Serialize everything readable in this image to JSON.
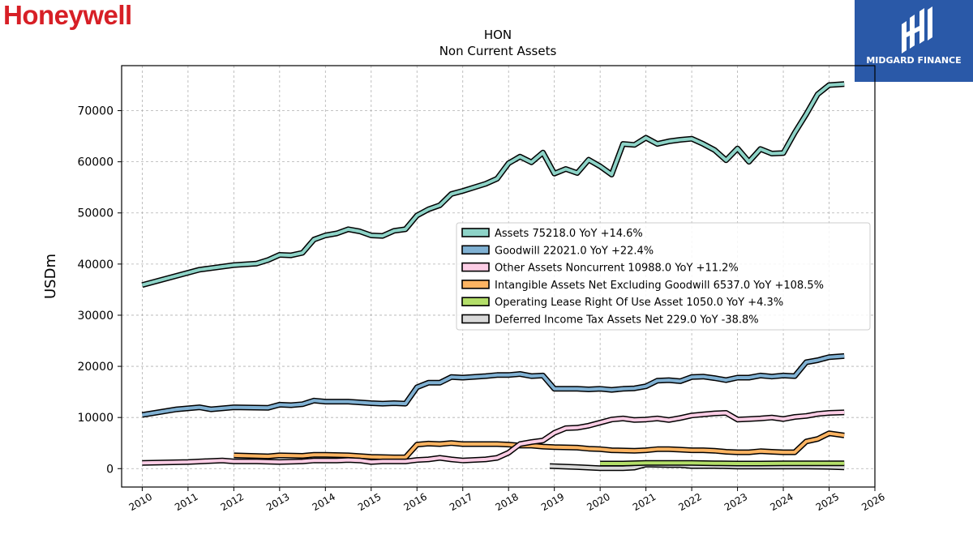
{
  "header": {
    "brand": "Honeywell",
    "badge_label": "MIDGARD FINANCE"
  },
  "chart_data": {
    "type": "line",
    "title": "HON",
    "subtitle": "Non Current  Assets",
    "xlabel": "",
    "ylabel": "USDm",
    "xlim": [
      2009.55,
      2026.0
    ],
    "ylim": [
      -3600,
      78800
    ],
    "x_ticks": [
      2010,
      2011,
      2012,
      2013,
      2014,
      2015,
      2016,
      2017,
      2018,
      2019,
      2020,
      2021,
      2022,
      2023,
      2024,
      2025,
      2026
    ],
    "y_ticks": [
      0,
      10000,
      20000,
      30000,
      40000,
      50000,
      60000,
      70000
    ],
    "grid": true,
    "legend_position": "center-right",
    "series": [
      {
        "name": "Assets",
        "legend": "Assets  75218.0 YoY +14.6%",
        "color": "#8dd3c7",
        "points": [
          [
            2010.0,
            35900
          ],
          [
            2011.25,
            38900
          ],
          [
            2012.0,
            39800
          ],
          [
            2012.5,
            40100
          ],
          [
            2012.75,
            40800
          ],
          [
            2013.0,
            41800
          ],
          [
            2013.25,
            41700
          ],
          [
            2013.5,
            42200
          ],
          [
            2013.75,
            44800
          ],
          [
            2014.0,
            45600
          ],
          [
            2014.25,
            46000
          ],
          [
            2014.5,
            46800
          ],
          [
            2014.75,
            46400
          ],
          [
            2015.0,
            45600
          ],
          [
            2015.25,
            45500
          ],
          [
            2015.5,
            46500
          ],
          [
            2015.75,
            46800
          ],
          [
            2016.0,
            49500
          ],
          [
            2016.25,
            50700
          ],
          [
            2016.5,
            51500
          ],
          [
            2016.75,
            53700
          ],
          [
            2017.0,
            54300
          ],
          [
            2017.25,
            55000
          ],
          [
            2017.5,
            55700
          ],
          [
            2017.75,
            56700
          ],
          [
            2018.0,
            59700
          ],
          [
            2018.25,
            61000
          ],
          [
            2018.5,
            59900
          ],
          [
            2018.75,
            61800
          ],
          [
            2019.0,
            57700
          ],
          [
            2019.25,
            58600
          ],
          [
            2019.5,
            57800
          ],
          [
            2019.75,
            60400
          ],
          [
            2020.0,
            59100
          ],
          [
            2020.25,
            57500
          ],
          [
            2020.5,
            63500
          ],
          [
            2020.75,
            63300
          ],
          [
            2021.0,
            64700
          ],
          [
            2021.25,
            63500
          ],
          [
            2021.5,
            64000
          ],
          [
            2021.75,
            64300
          ],
          [
            2022.0,
            64500
          ],
          [
            2022.25,
            63500
          ],
          [
            2022.5,
            62300
          ],
          [
            2022.75,
            60300
          ],
          [
            2023.0,
            62600
          ],
          [
            2023.25,
            60000
          ],
          [
            2023.5,
            62500
          ],
          [
            2023.75,
            61600
          ],
          [
            2024.0,
            61700
          ],
          [
            2024.25,
            65700
          ],
          [
            2024.5,
            69300
          ],
          [
            2024.75,
            73200
          ],
          [
            2025.0,
            75000
          ],
          [
            2025.33,
            75200
          ]
        ]
      },
      {
        "name": "Goodwill",
        "legend": "Goodwill  22021.0 YoY +22.4%",
        "color": "#80b1d3",
        "points": [
          [
            2010.0,
            10500
          ],
          [
            2010.75,
            11600
          ],
          [
            2011.25,
            12000
          ],
          [
            2011.5,
            11600
          ],
          [
            2012.0,
            12000
          ],
          [
            2012.75,
            11900
          ],
          [
            2013.0,
            12500
          ],
          [
            2013.25,
            12400
          ],
          [
            2013.5,
            12600
          ],
          [
            2013.75,
            13300
          ],
          [
            2014.0,
            13100
          ],
          [
            2014.5,
            13100
          ],
          [
            2015.0,
            12800
          ],
          [
            2015.25,
            12700
          ],
          [
            2015.5,
            12800
          ],
          [
            2015.75,
            12700
          ],
          [
            2016.0,
            15900
          ],
          [
            2016.25,
            16800
          ],
          [
            2016.5,
            16800
          ],
          [
            2016.75,
            17900
          ],
          [
            2017.0,
            17800
          ],
          [
            2017.5,
            18100
          ],
          [
            2017.75,
            18300
          ],
          [
            2018.0,
            18300
          ],
          [
            2018.25,
            18500
          ],
          [
            2018.5,
            18100
          ],
          [
            2018.75,
            18200
          ],
          [
            2019.0,
            15600
          ],
          [
            2019.5,
            15600
          ],
          [
            2019.75,
            15500
          ],
          [
            2020.0,
            15600
          ],
          [
            2020.25,
            15400
          ],
          [
            2020.5,
            15600
          ],
          [
            2020.75,
            15700
          ],
          [
            2021.0,
            16100
          ],
          [
            2021.25,
            17200
          ],
          [
            2021.5,
            17300
          ],
          [
            2021.75,
            17100
          ],
          [
            2022.0,
            17900
          ],
          [
            2022.25,
            18000
          ],
          [
            2022.5,
            17700
          ],
          [
            2022.75,
            17300
          ],
          [
            2023.0,
            17800
          ],
          [
            2023.25,
            17800
          ],
          [
            2023.5,
            18200
          ],
          [
            2023.75,
            18000
          ],
          [
            2024.0,
            18200
          ],
          [
            2024.25,
            18100
          ],
          [
            2024.5,
            20800
          ],
          [
            2024.75,
            21200
          ],
          [
            2025.0,
            21800
          ],
          [
            2025.33,
            22000
          ]
        ]
      },
      {
        "name": "Other Assets Noncurrent",
        "legend": "Other Assets Noncurrent  10988.0 YoY +11.2%",
        "color": "#fccde5",
        "points": [
          [
            2010.0,
            1100
          ],
          [
            2011.0,
            1300
          ],
          [
            2011.75,
            1600
          ],
          [
            2012.0,
            1400
          ],
          [
            2012.5,
            1400
          ],
          [
            2013.0,
            1300
          ],
          [
            2013.5,
            1400
          ],
          [
            2013.75,
            1600
          ],
          [
            2014.0,
            1600
          ],
          [
            2014.25,
            1600
          ],
          [
            2014.5,
            1700
          ],
          [
            2014.75,
            1600
          ],
          [
            2015.0,
            1300
          ],
          [
            2015.25,
            1400
          ],
          [
            2015.5,
            1400
          ],
          [
            2015.75,
            1400
          ],
          [
            2016.0,
            1700
          ],
          [
            2016.25,
            1800
          ],
          [
            2016.5,
            2100
          ],
          [
            2016.75,
            1800
          ],
          [
            2017.0,
            1600
          ],
          [
            2017.5,
            1800
          ],
          [
            2017.75,
            2100
          ],
          [
            2018.0,
            3100
          ],
          [
            2018.25,
            4800
          ],
          [
            2018.5,
            5200
          ],
          [
            2018.75,
            5500
          ],
          [
            2019.0,
            7000
          ],
          [
            2019.25,
            7900
          ],
          [
            2019.5,
            8000
          ],
          [
            2019.75,
            8400
          ],
          [
            2020.0,
            9000
          ],
          [
            2020.25,
            9600
          ],
          [
            2020.5,
            9800
          ],
          [
            2020.75,
            9500
          ],
          [
            2021.0,
            9600
          ],
          [
            2021.25,
            9800
          ],
          [
            2021.5,
            9500
          ],
          [
            2021.75,
            9900
          ],
          [
            2022.0,
            10400
          ],
          [
            2022.25,
            10600
          ],
          [
            2022.5,
            10800
          ],
          [
            2022.75,
            10900
          ],
          [
            2023.0,
            9600
          ],
          [
            2023.25,
            9700
          ],
          [
            2023.5,
            9800
          ],
          [
            2023.75,
            10000
          ],
          [
            2024.0,
            9700
          ],
          [
            2024.25,
            10100
          ],
          [
            2024.5,
            10300
          ],
          [
            2024.75,
            10700
          ],
          [
            2025.0,
            10900
          ],
          [
            2025.33,
            11000
          ]
        ]
      },
      {
        "name": "Intangible Assets Net Excluding Goodwill",
        "legend": "Intangible Assets Net Excluding Goodwill  6537.0 YoY +108.5%",
        "color": "#fdb462",
        "points": [
          [
            2012.0,
            2600
          ],
          [
            2012.75,
            2400
          ],
          [
            2013.0,
            2600
          ],
          [
            2013.5,
            2500
          ],
          [
            2013.75,
            2700
          ],
          [
            2014.0,
            2700
          ],
          [
            2014.5,
            2600
          ],
          [
            2015.0,
            2300
          ],
          [
            2015.5,
            2200
          ],
          [
            2015.75,
            2200
          ],
          [
            2016.0,
            4700
          ],
          [
            2016.25,
            4900
          ],
          [
            2016.5,
            4800
          ],
          [
            2016.75,
            5000
          ],
          [
            2017.0,
            4800
          ],
          [
            2017.75,
            4800
          ],
          [
            2018.0,
            4700
          ],
          [
            2018.25,
            4500
          ],
          [
            2018.5,
            4500
          ],
          [
            2018.75,
            4300
          ],
          [
            2019.0,
            4200
          ],
          [
            2019.5,
            4100
          ],
          [
            2019.75,
            3900
          ],
          [
            2020.0,
            3800
          ],
          [
            2020.25,
            3600
          ],
          [
            2020.75,
            3500
          ],
          [
            2021.0,
            3600
          ],
          [
            2021.25,
            3800
          ],
          [
            2021.5,
            3800
          ],
          [
            2021.75,
            3700
          ],
          [
            2022.0,
            3600
          ],
          [
            2022.25,
            3600
          ],
          [
            2022.5,
            3500
          ],
          [
            2022.75,
            3300
          ],
          [
            2023.0,
            3200
          ],
          [
            2023.25,
            3200
          ],
          [
            2023.5,
            3400
          ],
          [
            2023.75,
            3300
          ],
          [
            2024.0,
            3200
          ],
          [
            2024.25,
            3200
          ],
          [
            2024.5,
            5300
          ],
          [
            2024.75,
            5800
          ],
          [
            2025.0,
            6900
          ],
          [
            2025.33,
            6500
          ]
        ]
      },
      {
        "name": "Operating Lease Right Of Use Asset",
        "legend": "Operating Lease Right Of Use Asset  1050.0 YoY +4.3%",
        "color": "#b3de69",
        "points": [
          [
            2020.0,
            1000
          ],
          [
            2020.5,
            1000
          ],
          [
            2021.0,
            1100
          ],
          [
            2021.5,
            1100
          ],
          [
            2022.0,
            1100
          ],
          [
            2022.5,
            1050
          ],
          [
            2023.0,
            1000
          ],
          [
            2023.5,
            1000
          ],
          [
            2024.0,
            1050
          ],
          [
            2024.5,
            1050
          ],
          [
            2025.0,
            1050
          ],
          [
            2025.33,
            1050
          ]
        ]
      },
      {
        "name": "Deferred Income Tax Assets Net",
        "legend": "Deferred Income Tax Assets Net  229.0 YoY -38.8%",
        "color": "#d9d9d9",
        "points": [
          [
            2018.9,
            500
          ],
          [
            2019.5,
            300
          ],
          [
            2020.0,
            100
          ],
          [
            2020.5,
            100
          ],
          [
            2020.75,
            200
          ],
          [
            2021.0,
            800
          ],
          [
            2021.5,
            700
          ],
          [
            2021.75,
            700
          ],
          [
            2022.0,
            500
          ],
          [
            2022.5,
            500
          ],
          [
            2023.0,
            400
          ],
          [
            2023.5,
            400
          ],
          [
            2024.0,
            400
          ],
          [
            2024.5,
            400
          ],
          [
            2025.0,
            350
          ],
          [
            2025.33,
            229
          ]
        ]
      }
    ]
  }
}
